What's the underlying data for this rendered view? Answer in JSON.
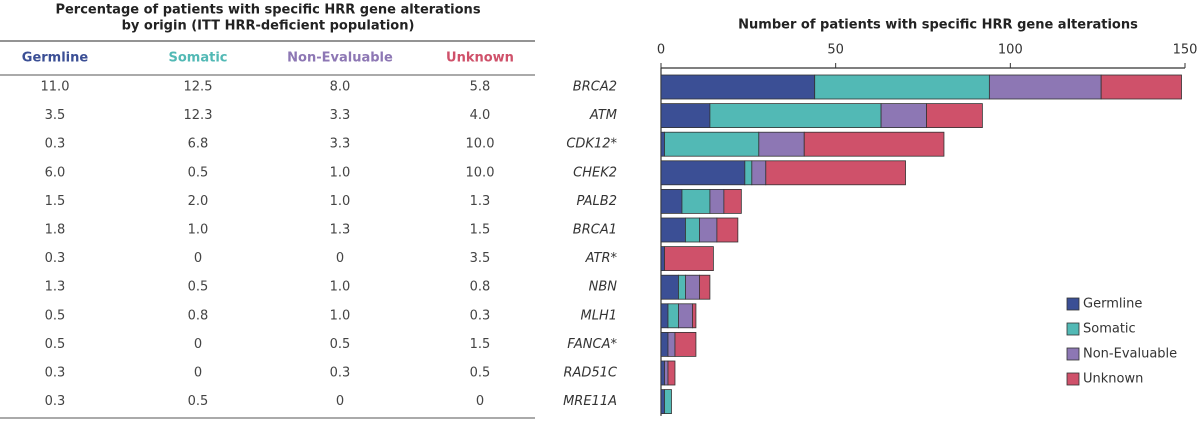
{
  "table": {
    "title_lines": [
      "Percentage of patients with specific HRR gene alterations",
      "by origin (ITT HRR-deficient population)"
    ],
    "headers": [
      "Germline",
      "Somatic",
      "Non-Evaluable",
      "Unknown"
    ],
    "rows": [
      [
        "11.0",
        "12.5",
        "8.0",
        "5.8"
      ],
      [
        "3.5",
        "12.3",
        "3.3",
        "4.0"
      ],
      [
        "0.3",
        "6.8",
        "3.3",
        "10.0"
      ],
      [
        "6.0",
        "0.5",
        "1.0",
        "10.0"
      ],
      [
        "1.5",
        "2.0",
        "1.0",
        "1.3"
      ],
      [
        "1.8",
        "1.0",
        "1.3",
        "1.5"
      ],
      [
        "0.3",
        "0",
        "0",
        "3.5"
      ],
      [
        "1.3",
        "0.5",
        "1.0",
        "0.8"
      ],
      [
        "0.5",
        "0.8",
        "1.0",
        "0.3"
      ],
      [
        "0.5",
        "0",
        "0.5",
        "1.5"
      ],
      [
        "0.3",
        "0",
        "0.3",
        "0.5"
      ],
      [
        "0.3",
        "0.5",
        "0",
        "0"
      ]
    ]
  },
  "chart_data": {
    "type": "stacked-bar-horizontal",
    "title": "Number of patients with specific HRR gene alterations",
    "categories": [
      "BRCA2",
      "ATM",
      "CDK12*",
      "CHEK2",
      "PALB2",
      "BRCA1",
      "ATR*",
      "NBN",
      "MLH1",
      "FANCA*",
      "RAD51C",
      "MRE11A"
    ],
    "series": [
      {
        "name": "Germline",
        "color": "#3b4f95",
        "values": [
          44,
          14,
          1,
          24,
          6,
          7,
          1,
          5,
          2,
          2,
          1,
          1
        ]
      },
      {
        "name": "Somatic",
        "color": "#52b9b5",
        "values": [
          50,
          49,
          27,
          2,
          8,
          4,
          0,
          2,
          3,
          0,
          0,
          2
        ]
      },
      {
        "name": "Non-Evaluable",
        "color": "#8d77b4",
        "values": [
          32,
          13,
          13,
          4,
          4,
          5,
          0,
          4,
          4,
          2,
          1,
          0
        ]
      },
      {
        "name": "Unknown",
        "color": "#cf516a",
        "values": [
          23,
          16,
          40,
          40,
          5,
          6,
          14,
          3,
          1,
          6,
          2,
          0
        ]
      }
    ],
    "xlim": [
      0,
      150
    ],
    "xticks": [
      0,
      50,
      100,
      150
    ],
    "legend": "lower right"
  }
}
